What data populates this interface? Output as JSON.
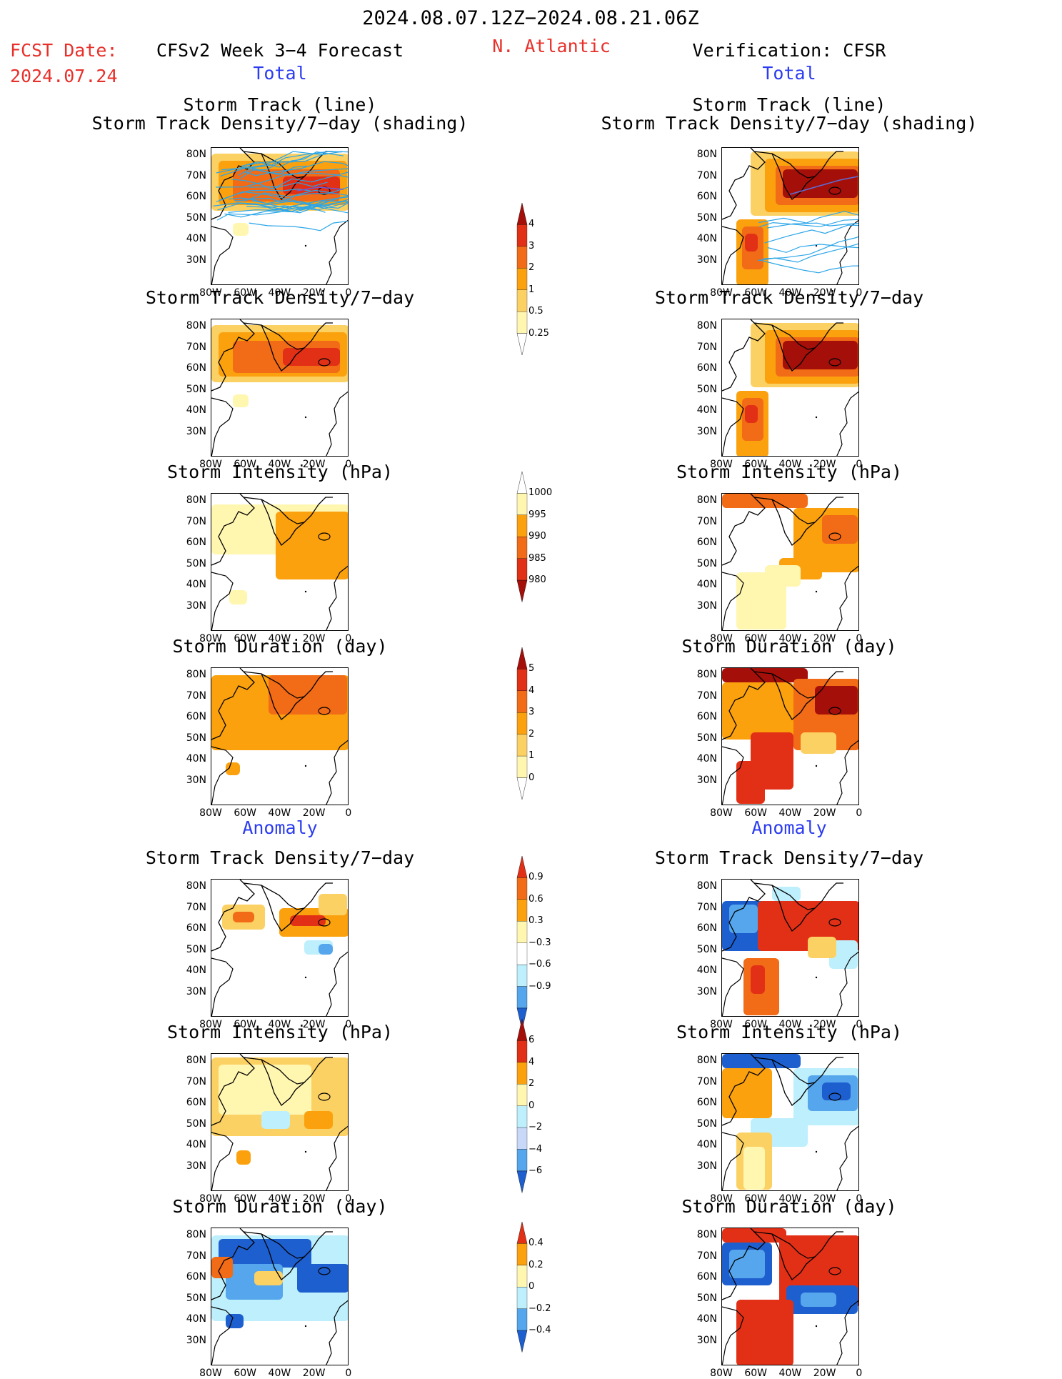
{
  "header": {
    "date_range": "2024.08.07.12Z−2024.08.21.06Z",
    "fcst_label": "FCST Date:",
    "fcst_date": "2024.07.24",
    "left_title": "CFSv2 Week 3−4 Forecast",
    "region": "N. Atlantic",
    "right_title": "Verification: CFSR",
    "left_total": "Total",
    "right_total": "Total"
  },
  "section_titles": {
    "anomaly_left": "Anomaly",
    "anomaly_right": "Anomaly"
  },
  "panels": [
    {
      "title1": "Storm Track (line)",
      "title2": "Storm Track Density/7−day (shading)"
    },
    {
      "title1": "Storm Track Density/7−day"
    },
    {
      "title1": "Storm Intensity (hPa)"
    },
    {
      "title1": "Storm Duration (day)"
    },
    {
      "title1": "Storm Track Density/7−day"
    },
    {
      "title1": "Storm Intensity (hPa)"
    },
    {
      "title1": "Storm Duration (day)"
    }
  ],
  "axes": {
    "lat_labels": [
      "80N",
      "70N",
      "60N",
      "50N",
      "40N",
      "30N"
    ],
    "lon_labels": [
      "80W",
      "60W",
      "40W",
      "20W",
      "0"
    ]
  },
  "colorbars": [
    {
      "name": "total-density",
      "labels": [
        "4",
        "3",
        "2",
        "1",
        "0.5",
        "0.25"
      ]
    },
    {
      "name": "total-intensity",
      "labels": [
        "1000",
        "995",
        "990",
        "985",
        "980"
      ]
    },
    {
      "name": "total-duration",
      "labels": [
        "5",
        "4",
        "3",
        "2",
        "1",
        "0"
      ]
    },
    {
      "name": "anom-density",
      "labels": [
        "0.9",
        "0.6",
        "0.3",
        "−0.3",
        "−0.6",
        "−0.9"
      ]
    },
    {
      "name": "anom-intensity",
      "labels": [
        "6",
        "4",
        "2",
        "0",
        "−2",
        "−4",
        "−6"
      ]
    },
    {
      "name": "anom-duration",
      "labels": [
        "0.4",
        "0.2",
        "0",
        "−0.2",
        "−0.4"
      ]
    }
  ],
  "colors": {
    "title_red": "#e8302a",
    "title_blue": "#2c3cf0",
    "pale_yellow": "#fff6b0",
    "light_orange": "#fcd164",
    "orange": "#fba10e",
    "dark_orange": "#f26b16",
    "red": "#e23016",
    "dark_red": "#a50f0a",
    "light_blue": "#bdeffc",
    "mid_blue": "#55a6ec",
    "dark_blue": "#1e5fcf",
    "track_line": "#2aa5e8"
  }
}
